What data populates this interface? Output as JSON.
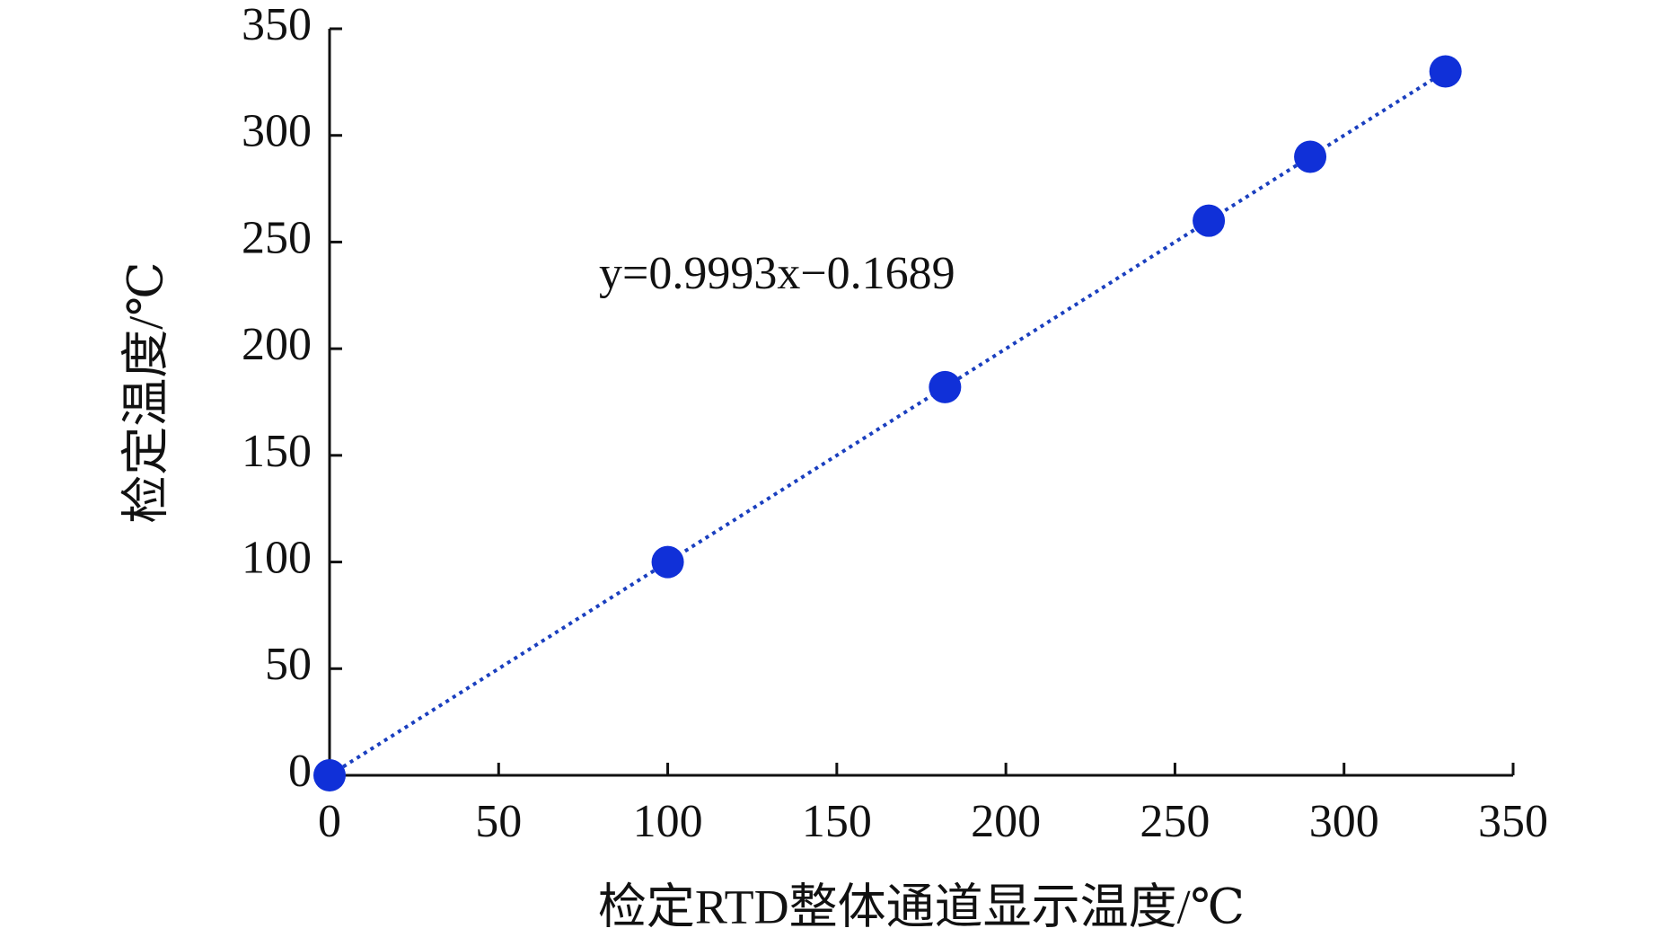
{
  "chart_data": {
    "type": "scatter",
    "x_label": "检定RTD整体通道显示温度/℃",
    "y_label": "检定温度/℃",
    "annotation": "y=0.9993x−0.1689",
    "x": [
      0,
      100,
      182,
      260,
      290,
      330
    ],
    "series": [
      {
        "color": "#1030d8",
        "values": [
          0,
          100,
          182,
          260,
          290,
          330
        ]
      }
    ],
    "line_color": "#1a3fbf",
    "xlim": [
      0,
      350
    ],
    "xticks": [
      0,
      50,
      100,
      150,
      200,
      250,
      300,
      350
    ],
    "ylim": [
      0,
      350
    ],
    "yticks": [
      0,
      50,
      100,
      150,
      200,
      250,
      300,
      350
    ]
  }
}
